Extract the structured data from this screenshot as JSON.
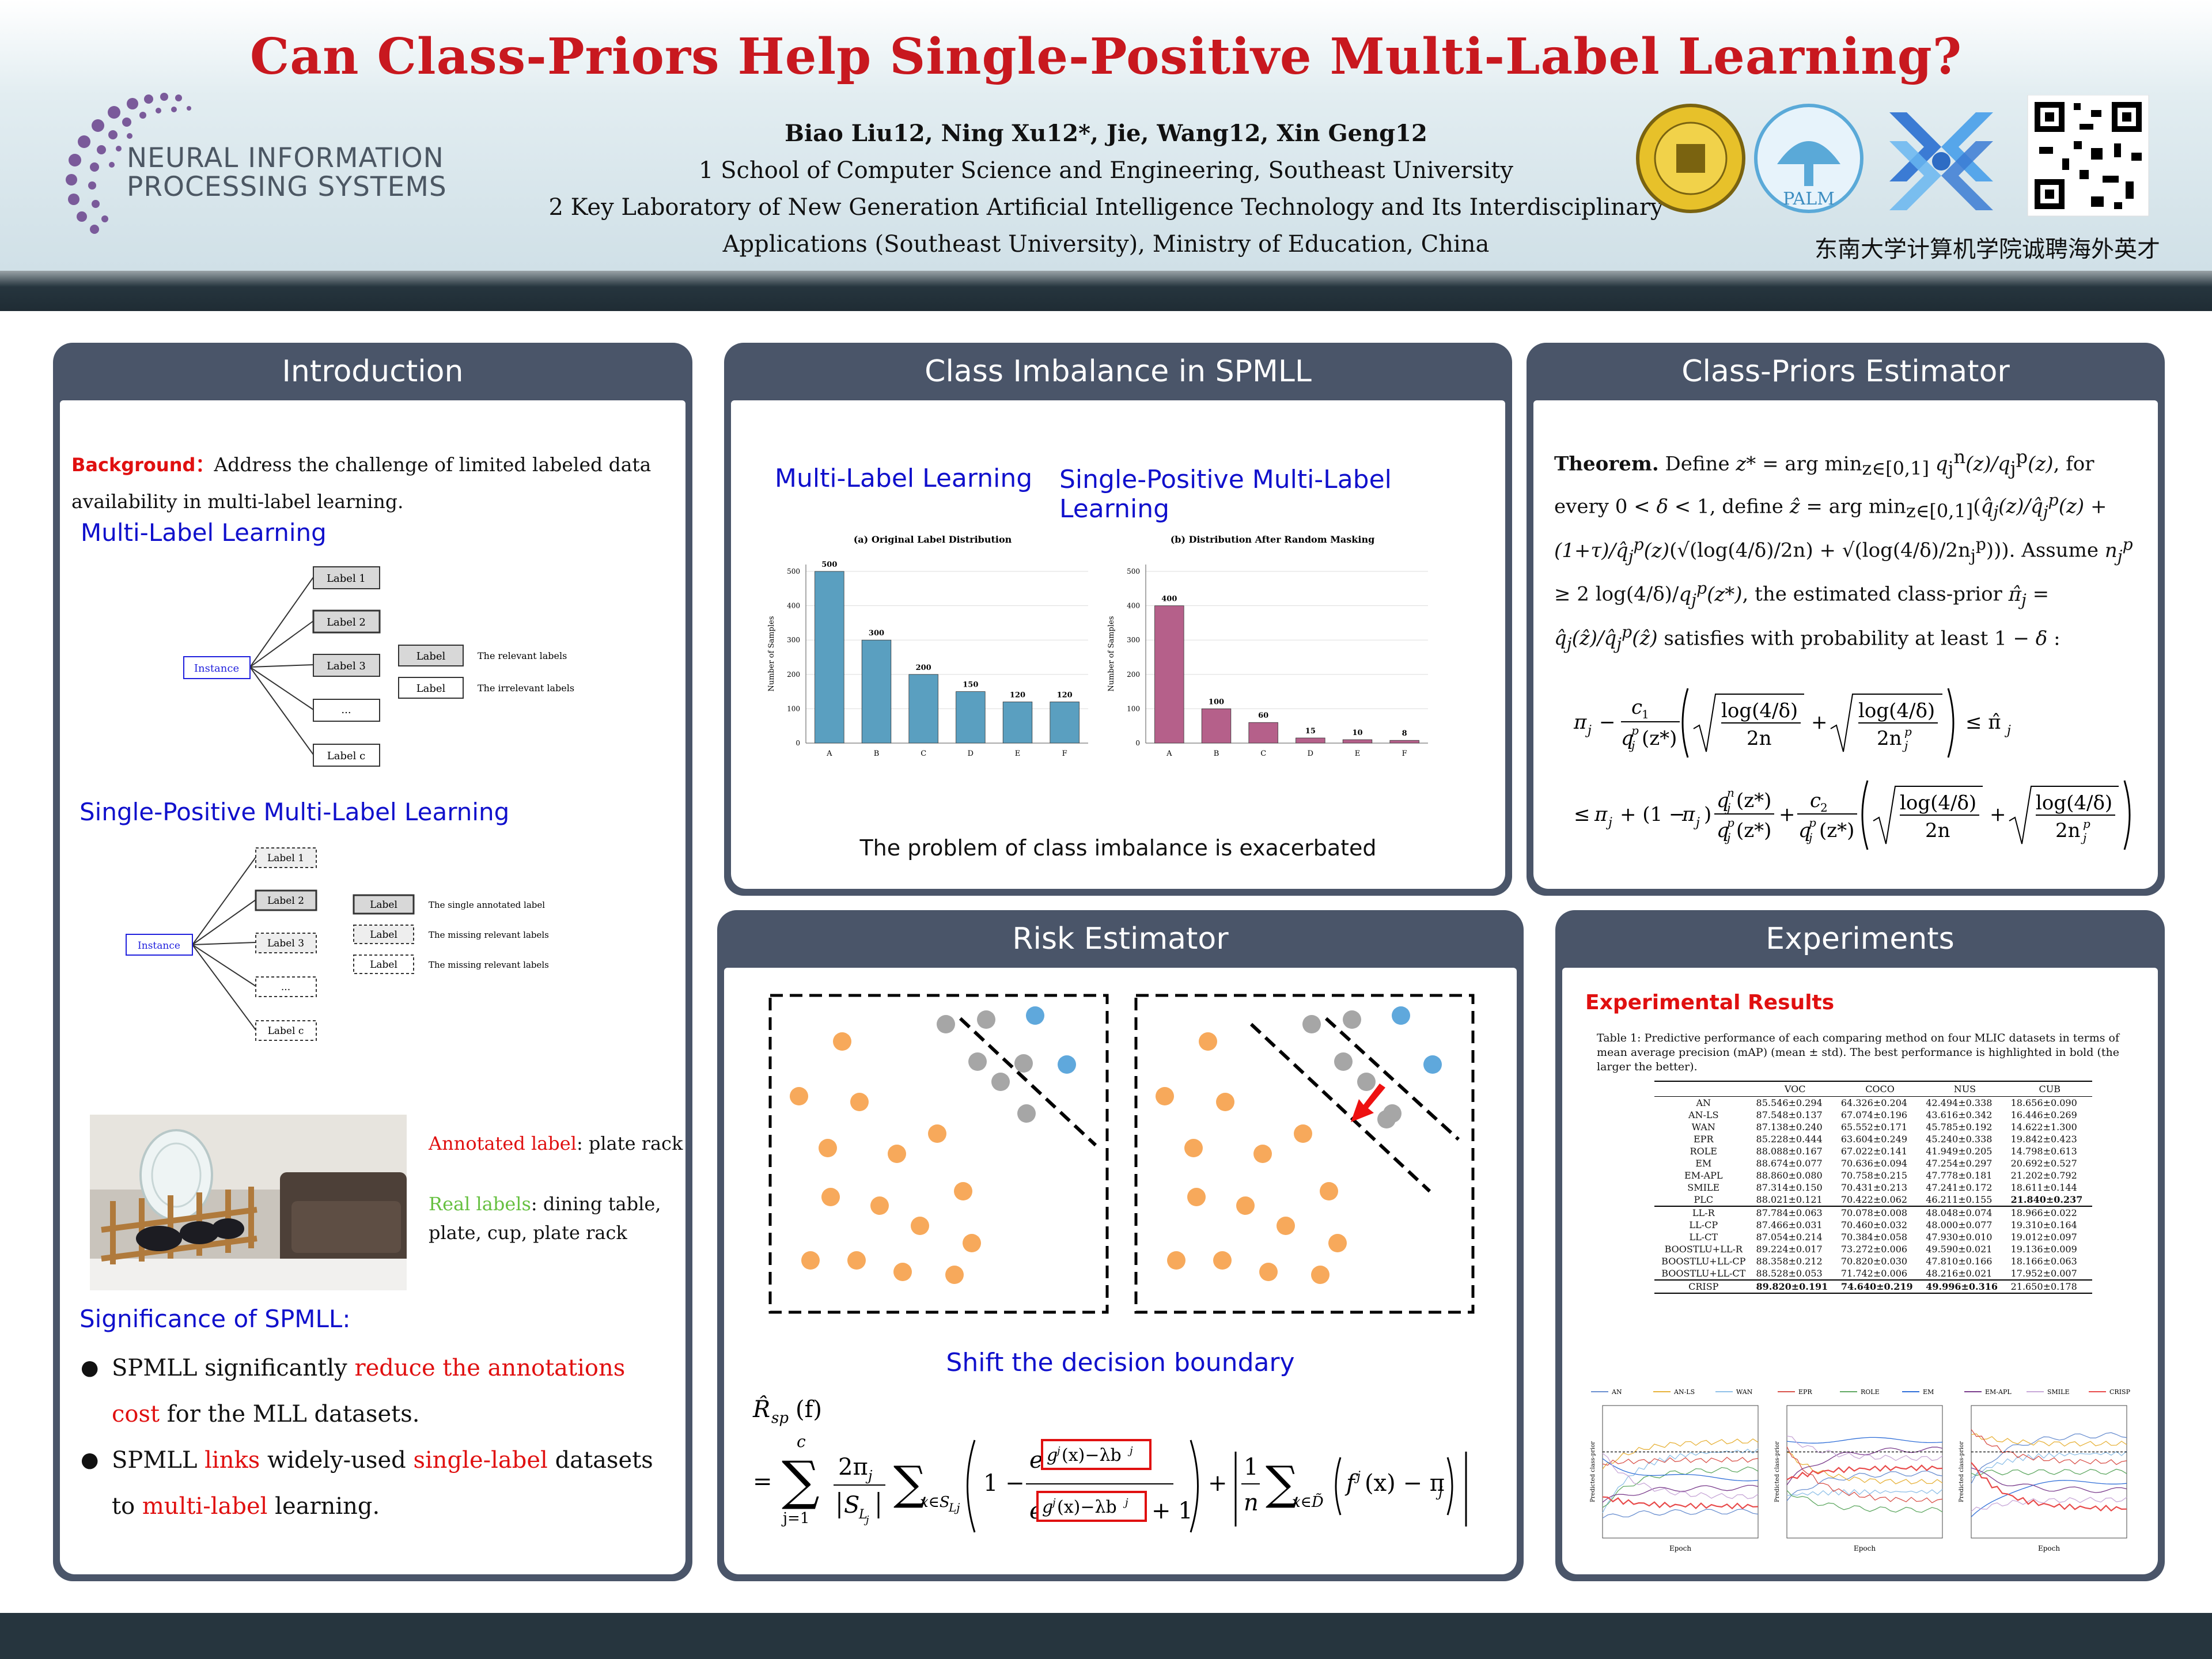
{
  "header": {
    "title": "Can Class-Priors Help Single-Positive Multi-Label Learning?",
    "authors": "Biao Liu12, Ning Xu12*, Jie, Wang12, Xin Geng12",
    "affiliation_1": "1 School of Computer Science and Engineering, Southeast University",
    "affiliation_2a": "2 Key Laboratory of New Generation Artificial Intelligence Technology and Its Interdisciplinary",
    "affiliation_2b": "Applications (Southeast University), Ministry of Education, China",
    "neurips_line1": "NEURAL INFORMATION",
    "neurips_line2": "PROCESSING SYSTEMS",
    "palm_label": "PALM",
    "recruit": "东南大学计算机学院诚聘海外英才"
  },
  "introduction": {
    "title": "Introduction",
    "background_label": "Background：",
    "background_text": "Address the challenge of limited labeled data availability in multi-label learning.",
    "mll_heading": "Multi-Label Learning",
    "spmll_heading": "Single-Positive Multi-Label Learning",
    "instance": "Instance",
    "labels": [
      "Label 1",
      "Label 2",
      "Label 3",
      "...",
      "Label c"
    ],
    "legend_label": "Label",
    "relevant": "The relevant labels",
    "irrelevant": "The irrelevant labels",
    "single_annotated": "The single annotated label",
    "missing_relevant": "The missing relevant labels",
    "annotated_label_prefix": "Annotated label",
    "annotated_label_value": ": plate rack",
    "real_labels_prefix": "Real labels",
    "real_labels_value": ": dining table, plate, cup, plate rack",
    "significance_heading": "Significance of SPMLL:",
    "bullet1_a": "SPMLL significantly ",
    "bullet1_b": "reduce the annotations cost",
    "bullet1_c": " for the MLL datasets.",
    "bullet2_a": "SPMLL ",
    "bullet2_b": "links",
    "bullet2_c": " widely-used ",
    "bullet2_d": "single-label",
    "bullet2_e": " datasets to ",
    "bullet2_f": "multi-label",
    "bullet2_g": " learning."
  },
  "imbalance": {
    "title": "Class Imbalance in SPMLL",
    "mll_heading": "Multi-Label Learning",
    "spmll_heading": "Single-Positive Multi-Label Learning",
    "caption": "The problem of class imbalance is exacerbated"
  },
  "chart_data": [
    {
      "type": "bar",
      "title": "(a) Original Label Distribution",
      "ylabel": "Number of Samples",
      "categories": [
        "A",
        "B",
        "C",
        "D",
        "E",
        "F"
      ],
      "values": [
        500,
        300,
        200,
        150,
        120,
        120
      ],
      "yticks": [
        0,
        100,
        200,
        300,
        400,
        500
      ],
      "ylim": [
        0,
        520
      ],
      "color": "#5a9fc0",
      "grid": true
    },
    {
      "type": "bar",
      "title": "(b) Distribution After Random Masking",
      "ylabel": "Number of Samples",
      "categories": [
        "A",
        "B",
        "C",
        "D",
        "E",
        "F"
      ],
      "values": [
        400,
        100,
        60,
        15,
        10,
        8
      ],
      "yticks": [
        0,
        100,
        200,
        300,
        400,
        500
      ],
      "ylim": [
        0,
        520
      ],
      "color": "#b5608a",
      "grid": true
    }
  ],
  "estimator": {
    "title": "Class-Priors Estimator",
    "theorem_label": "Theorem."
  },
  "risk": {
    "title": "Risk Estimator",
    "shift_caption": "Shift the decision boundary",
    "orange": "#f7a95b",
    "gray": "#a6a6a6",
    "blue": "#5fa8dc"
  },
  "experiments": {
    "title": "Experiments",
    "results_heading": "Experimental Results",
    "caption": "Table 1: Predictive performance of each comparing method on four MLIC datasets in terms of mean average precision (mAP) (mean ± std). The best performance is highlighted in bold (the larger the better).",
    "columns": [
      "",
      "VOC",
      "COCO",
      "NUS",
      "CUB"
    ],
    "rows_a": [
      [
        "AN",
        "85.546±0.294",
        "64.326±0.204",
        "42.494±0.338",
        "18.656±0.090"
      ],
      [
        "AN-LS",
        "87.548±0.137",
        "67.074±0.196",
        "43.616±0.342",
        "16.446±0.269"
      ],
      [
        "WAN",
        "87.138±0.240",
        "65.552±0.171",
        "45.785±0.192",
        "14.622±1.300"
      ],
      [
        "EPR",
        "85.228±0.444",
        "63.604±0.249",
        "45.240±0.338",
        "19.842±0.423"
      ],
      [
        "ROLE",
        "88.088±0.167",
        "67.022±0.141",
        "41.949±0.205",
        "14.798±0.613"
      ],
      [
        "EM",
        "88.674±0.077",
        "70.636±0.094",
        "47.254±0.297",
        "20.692±0.527"
      ],
      [
        "EM-APL",
        "88.860±0.080",
        "70.758±0.215",
        "47.778±0.181",
        "21.202±0.792"
      ],
      [
        "SMILE",
        "87.314±0.150",
        "70.431±0.213",
        "47.241±0.172",
        "18.611±0.144"
      ],
      [
        "PLC",
        "88.021±0.121",
        "70.422±0.062",
        "46.211±0.155",
        "21.840±0.237"
      ]
    ],
    "rows_b": [
      [
        "LL-R",
        "87.784±0.063",
        "70.078±0.008",
        "48.048±0.074",
        "18.966±0.022"
      ],
      [
        "LL-CP",
        "87.466±0.031",
        "70.460±0.032",
        "48.000±0.077",
        "19.310±0.164"
      ],
      [
        "LL-CT",
        "87.054±0.214",
        "70.384±0.058",
        "47.930±0.010",
        "19.012±0.097"
      ],
      [
        "BOOSTLU+LL-R",
        "89.224±0.017",
        "73.272±0.006",
        "49.590±0.021",
        "19.136±0.009"
      ],
      [
        "BOOSTLU+LL-CP",
        "88.358±0.212",
        "70.820±0.030",
        "47.810±0.166",
        "18.166±0.063"
      ],
      [
        "BOOSTLU+LL-CT",
        "88.528±0.053",
        "71.742±0.006",
        "48.216±0.021",
        "17.952±0.007"
      ]
    ],
    "row_crisp": [
      "CRISP",
      "89.820±0.191",
      "74.640±0.219",
      "49.996±0.316",
      "21.650±0.178"
    ],
    "legend": [
      "AN",
      "AN-LS",
      "WAN",
      "EPR",
      "ROLE",
      "EM",
      "EM-APL",
      "SMILE",
      "CRISP"
    ],
    "xlabel": "Epoch",
    "ylabel": "Predicted class-prior"
  }
}
